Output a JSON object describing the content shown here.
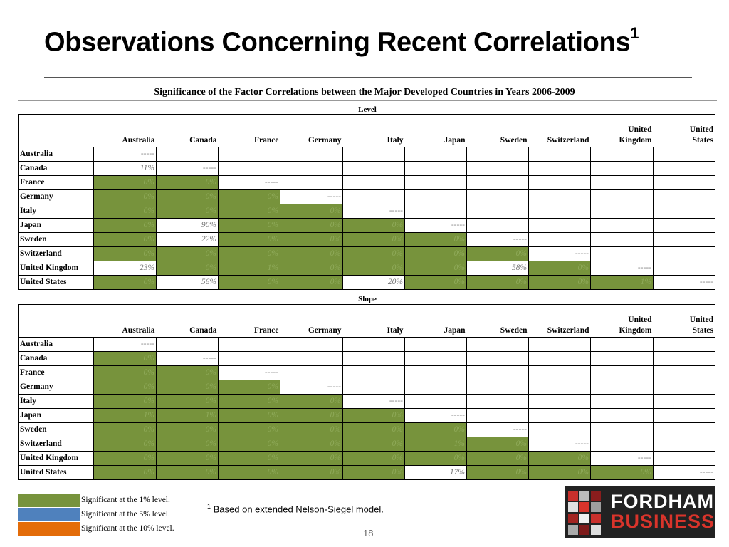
{
  "slide": {
    "title": "Observations Concerning Recent Correlations",
    "title_sup": "1",
    "table_title": "Significance of the Factor Correlations between the Major Developed Countries in Years 2006-2009",
    "footnote_marker": "1",
    "footnote_text": "Based on extended Nelson-Siegel model.",
    "page_number": "18"
  },
  "columns": [
    {
      "line1": "",
      "line2": "Australia"
    },
    {
      "line1": "",
      "line2": "Canada"
    },
    {
      "line1": "",
      "line2": "France"
    },
    {
      "line1": "",
      "line2": "Germany"
    },
    {
      "line1": "",
      "line2": "Italy"
    },
    {
      "line1": "",
      "line2": "Japan"
    },
    {
      "line1": "",
      "line2": "Sweden"
    },
    {
      "line1": "",
      "line2": "Switzerland"
    },
    {
      "line1": "United",
      "line2": "Kingdom"
    },
    {
      "line1": "United",
      "line2": "States"
    }
  ],
  "tables": [
    {
      "label": "Level",
      "rows": [
        {
          "country": "Australia",
          "cells": [
            {
              "v": "-----",
              "s": 0
            }
          ]
        },
        {
          "country": "Canada",
          "cells": [
            {
              "v": "11%",
              "s": 0
            },
            {
              "v": "-----",
              "s": 0
            }
          ]
        },
        {
          "country": "France",
          "cells": [
            {
              "v": "0%",
              "s": 1
            },
            {
              "v": "0%",
              "s": 1
            },
            {
              "v": "-----",
              "s": 0
            }
          ]
        },
        {
          "country": "Germany",
          "cells": [
            {
              "v": "0%",
              "s": 1
            },
            {
              "v": "0%",
              "s": 1
            },
            {
              "v": "0%",
              "s": 1
            },
            {
              "v": "-----",
              "s": 0
            }
          ]
        },
        {
          "country": "Italy",
          "cells": [
            {
              "v": "0%",
              "s": 1
            },
            {
              "v": "0%",
              "s": 1
            },
            {
              "v": "0%",
              "s": 1
            },
            {
              "v": "0%",
              "s": 1
            },
            {
              "v": "-----",
              "s": 0
            }
          ]
        },
        {
          "country": "Japan",
          "cells": [
            {
              "v": "0%",
              "s": 1
            },
            {
              "v": "90%",
              "s": 0
            },
            {
              "v": "0%",
              "s": 1
            },
            {
              "v": "0%",
              "s": 1
            },
            {
              "v": "0%",
              "s": 1
            },
            {
              "v": "-----",
              "s": 0
            }
          ]
        },
        {
          "country": "Sweden",
          "cells": [
            {
              "v": "0%",
              "s": 1
            },
            {
              "v": "22%",
              "s": 0
            },
            {
              "v": "0%",
              "s": 1
            },
            {
              "v": "0%",
              "s": 1
            },
            {
              "v": "0%",
              "s": 1
            },
            {
              "v": "0%",
              "s": 1
            },
            {
              "v": "-----",
              "s": 0
            }
          ]
        },
        {
          "country": "Switzerland",
          "cells": [
            {
              "v": "0%",
              "s": 1
            },
            {
              "v": "0%",
              "s": 1
            },
            {
              "v": "0%",
              "s": 1
            },
            {
              "v": "0%",
              "s": 1
            },
            {
              "v": "0%",
              "s": 1
            },
            {
              "v": "0%",
              "s": 1
            },
            {
              "v": "0%",
              "s": 1
            },
            {
              "v": "-----",
              "s": 0
            }
          ]
        },
        {
          "country": "United Kingdom",
          "cells": [
            {
              "v": "23%",
              "s": 0
            },
            {
              "v": "0%",
              "s": 1
            },
            {
              "v": "1%",
              "s": 1
            },
            {
              "v": "0%",
              "s": 1
            },
            {
              "v": "0%",
              "s": 1
            },
            {
              "v": "0%",
              "s": 1
            },
            {
              "v": "58%",
              "s": 0
            },
            {
              "v": "0%",
              "s": 1
            },
            {
              "v": "-----",
              "s": 0
            }
          ]
        },
        {
          "country": "United States",
          "cells": [
            {
              "v": "0%",
              "s": 1
            },
            {
              "v": "56%",
              "s": 0
            },
            {
              "v": "0%",
              "s": 1
            },
            {
              "v": "0%",
              "s": 1
            },
            {
              "v": "20%",
              "s": 0
            },
            {
              "v": "0%",
              "s": 1
            },
            {
              "v": "0%",
              "s": 1
            },
            {
              "v": "0%",
              "s": 1
            },
            {
              "v": "1%",
              "s": 1
            },
            {
              "v": "-----",
              "s": 0
            }
          ]
        }
      ]
    },
    {
      "label": "Slope",
      "rows": [
        {
          "country": "Australia",
          "cells": [
            {
              "v": "-----",
              "s": 0
            }
          ]
        },
        {
          "country": "Canada",
          "cells": [
            {
              "v": "0%",
              "s": 1
            },
            {
              "v": "-----",
              "s": 0
            }
          ]
        },
        {
          "country": "France",
          "cells": [
            {
              "v": "0%",
              "s": 1
            },
            {
              "v": "0%",
              "s": 1
            },
            {
              "v": "-----",
              "s": 0
            }
          ]
        },
        {
          "country": "Germany",
          "cells": [
            {
              "v": "0%",
              "s": 1
            },
            {
              "v": "0%",
              "s": 1
            },
            {
              "v": "0%",
              "s": 1
            },
            {
              "v": "-----",
              "s": 0
            }
          ]
        },
        {
          "country": "Italy",
          "cells": [
            {
              "v": "0%",
              "s": 1
            },
            {
              "v": "0%",
              "s": 1
            },
            {
              "v": "0%",
              "s": 1
            },
            {
              "v": "0%",
              "s": 1
            },
            {
              "v": "-----",
              "s": 0
            }
          ]
        },
        {
          "country": "Japan",
          "cells": [
            {
              "v": "1%",
              "s": 1
            },
            {
              "v": "1%",
              "s": 1
            },
            {
              "v": "0%",
              "s": 1
            },
            {
              "v": "0%",
              "s": 1
            },
            {
              "v": "0%",
              "s": 1
            },
            {
              "v": "-----",
              "s": 0
            }
          ]
        },
        {
          "country": "Sweden",
          "cells": [
            {
              "v": "0%",
              "s": 1
            },
            {
              "v": "0%",
              "s": 1
            },
            {
              "v": "0%",
              "s": 1
            },
            {
              "v": "0%",
              "s": 1
            },
            {
              "v": "0%",
              "s": 1
            },
            {
              "v": "0%",
              "s": 1
            },
            {
              "v": "-----",
              "s": 0
            }
          ]
        },
        {
          "country": "Switzerland",
          "cells": [
            {
              "v": "0%",
              "s": 1
            },
            {
              "v": "0%",
              "s": 1
            },
            {
              "v": "0%",
              "s": 1
            },
            {
              "v": "0%",
              "s": 1
            },
            {
              "v": "0%",
              "s": 1
            },
            {
              "v": "1%",
              "s": 1
            },
            {
              "v": "0%",
              "s": 1
            },
            {
              "v": "-----",
              "s": 0
            }
          ]
        },
        {
          "country": "United Kingdom",
          "cells": [
            {
              "v": "0%",
              "s": 1
            },
            {
              "v": "0%",
              "s": 1
            },
            {
              "v": "0%",
              "s": 1
            },
            {
              "v": "0%",
              "s": 1
            },
            {
              "v": "0%",
              "s": 1
            },
            {
              "v": "0%",
              "s": 1
            },
            {
              "v": "0%",
              "s": 1
            },
            {
              "v": "0%",
              "s": 1
            },
            {
              "v": "-----",
              "s": 0
            }
          ]
        },
        {
          "country": "United States",
          "cells": [
            {
              "v": "0%",
              "s": 1
            },
            {
              "v": "0%",
              "s": 1
            },
            {
              "v": "0%",
              "s": 1
            },
            {
              "v": "0%",
              "s": 1
            },
            {
              "v": "0%",
              "s": 1
            },
            {
              "v": "17%",
              "s": 0
            },
            {
              "v": "0%",
              "s": 1
            },
            {
              "v": "0%",
              "s": 1
            },
            {
              "v": "0%",
              "s": 1
            },
            {
              "v": "-----",
              "s": 0
            }
          ]
        }
      ]
    }
  ],
  "legend": [
    {
      "label": "Significant at the 1% level.",
      "color": "#77933c"
    },
    {
      "label": "Significant at the 5% level.",
      "color": "#4f81bd"
    },
    {
      "label": "Significant at the 10% level.",
      "color": "#e36c09"
    }
  ],
  "logo": {
    "line1": "FORDHAM",
    "line2": "BUSINESS"
  }
}
